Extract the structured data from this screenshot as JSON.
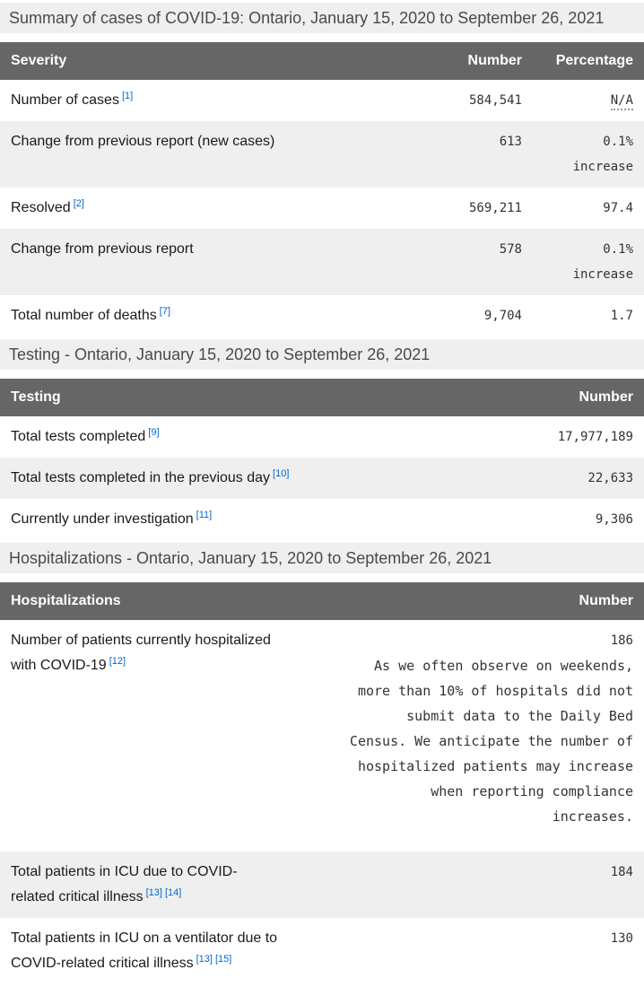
{
  "colors": {
    "table_header_bg": "#666666",
    "table_header_text": "#ffffff",
    "stripe_bg": "#efefef",
    "section_title_bg": "#efefef",
    "link_blue": "#0066cc",
    "label_text": "#1a1a1a",
    "value_text": "#333333"
  },
  "summary_table": {
    "title": "Summary of cases of COVID-19: Ontario, January 15, 2020 to September 26, 2021",
    "headers": {
      "label": "Severity",
      "number": "Number",
      "percentage": "Percentage"
    },
    "rows": [
      {
        "label": "Number of cases",
        "refs": [
          "[1]"
        ],
        "number": "584,541",
        "percentage": "N/A"
      },
      {
        "label": "Change from previous report (new cases)",
        "refs": [],
        "number": "613",
        "percentage": "0.1% increase"
      },
      {
        "label": "Resolved",
        "refs": [
          "[2]"
        ],
        "number": "569,211",
        "percentage": "97.4"
      },
      {
        "label": "Change from previous report",
        "refs": [],
        "number": "578",
        "percentage": "0.1% increase"
      },
      {
        "label": "Total number of deaths",
        "refs": [
          "[7]"
        ],
        "number": "9,704",
        "percentage": "1.7"
      }
    ]
  },
  "testing_table": {
    "title": "Testing - Ontario, January 15, 2020 to September 26, 2021",
    "headers": {
      "label": "Testing",
      "number": "Number"
    },
    "rows": [
      {
        "label": "Total tests completed",
        "refs": [
          "[9]"
        ],
        "number": "17,977,189"
      },
      {
        "label": "Total tests completed in the previous day",
        "refs": [
          "[10]"
        ],
        "number": "22,633"
      },
      {
        "label": "Currently under investigation",
        "refs": [
          "[11]"
        ],
        "number": "9,306"
      }
    ]
  },
  "hospitalizations_table": {
    "title": "Hospitalizations - Ontario, January 15, 2020 to September 26, 2021",
    "headers": {
      "label": "Hospitalizations",
      "number": "Number"
    },
    "rows": [
      {
        "label": "Number of patients currently hospitalized with COVID-19",
        "refs": [
          "[12]"
        ],
        "number": "186",
        "note": "As we often observe on weekends, more than 10% of hospitals did not submit data to the Daily Bed Census. We anticipate the number of hospitalized patients may increase when reporting compliance increases."
      },
      {
        "label": "Total patients in ICU due to COVID-related critical illness",
        "refs": [
          "[13]",
          "[14]"
        ],
        "number": "184"
      },
      {
        "label": "Total patients in ICU on a ventilator due to COVID-related critical illness",
        "refs": [
          "[13]",
          "[15]"
        ],
        "number": "130"
      }
    ]
  }
}
